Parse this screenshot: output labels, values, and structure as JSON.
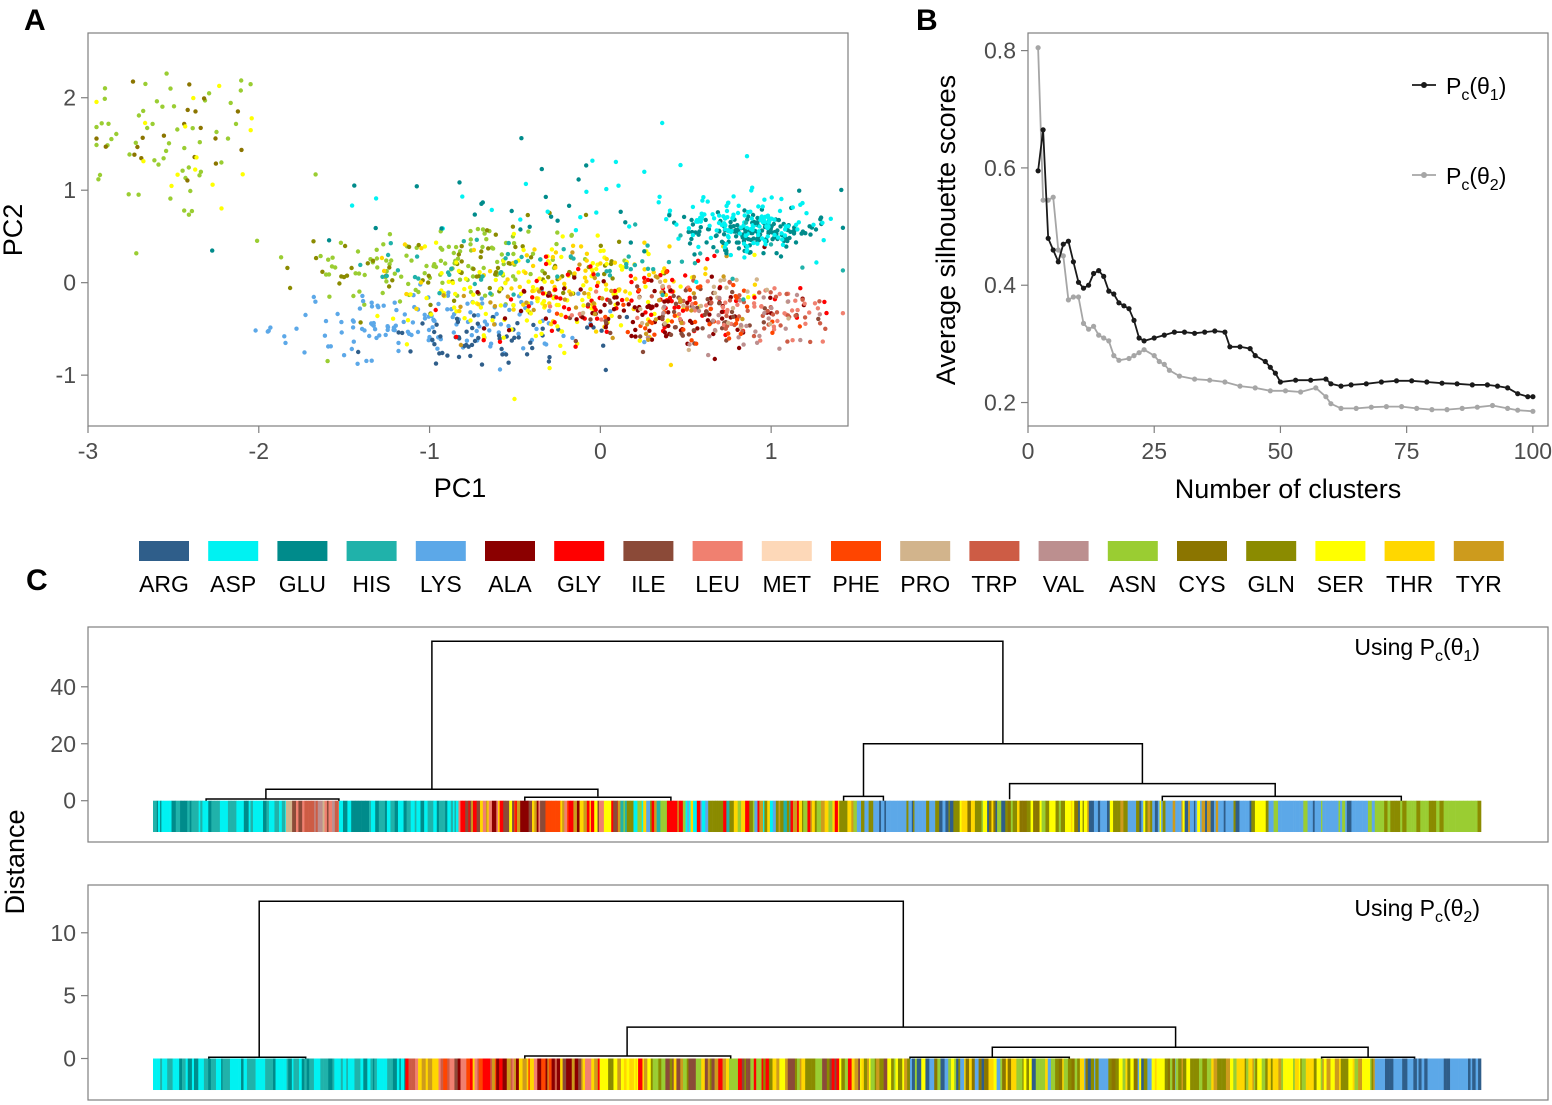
{
  "colors": {
    "ARG": "#2f5e8a",
    "ASP": "#00f2f2",
    "GLU": "#008b8b",
    "HIS": "#20b2aa",
    "LYS": "#5ca8e8",
    "ALA": "#8b0000",
    "GLY": "#ff0000",
    "ILE": "#8b4a38",
    "LEU": "#f08070",
    "MET": "#fdd8b8",
    "PHE": "#ff4500",
    "PRO": "#d2b48c",
    "TRP": "#cd5c45",
    "VAL": "#bc8f8f",
    "ASN": "#9acd32",
    "CYS": "#8b7500",
    "GLN": "#8b8b00",
    "SER": "#ffff00",
    "THR": "#ffd700",
    "TYR": "#cd9b1d"
  },
  "legend_c": [
    "ARG",
    "ASP",
    "GLU",
    "HIS",
    "LYS",
    "ALA",
    "GLY",
    "ILE",
    "LEU",
    "MET",
    "PHE",
    "PRO",
    "TRP",
    "VAL",
    "ASN",
    "CYS",
    "GLN",
    "SER",
    "THR",
    "TYR"
  ],
  "panel_letters": {
    "a": "A",
    "b": "B",
    "c": "C"
  },
  "chart_data": [
    {
      "id": "A",
      "type": "scatter",
      "title": "",
      "xlabel": "PC1",
      "ylabel": "PC2",
      "xlim": [
        -3.0,
        1.45
      ],
      "ylim": [
        -1.55,
        2.7
      ],
      "xticks": [
        "-3",
        "-2",
        "-1",
        "0",
        "1"
      ],
      "yticks": [
        "-1",
        "0",
        "1",
        "2"
      ],
      "clusters": [
        {
          "cls": "ASN",
          "n": 55,
          "cx": -2.5,
          "cy": 1.5,
          "sx": 0.3,
          "sy": 0.45
        },
        {
          "cls": "CYS",
          "n": 20,
          "cx": -2.5,
          "cy": 1.7,
          "sx": 0.3,
          "sy": 0.35
        },
        {
          "cls": "SER",
          "n": 15,
          "cx": -2.4,
          "cy": 1.5,
          "sx": 0.25,
          "sy": 0.4
        },
        {
          "cls": "ASN",
          "n": 120,
          "cx": -0.9,
          "cy": 0.2,
          "sx": 0.45,
          "sy": 0.25
        },
        {
          "cls": "GLN",
          "n": 80,
          "cx": -0.7,
          "cy": 0.15,
          "sx": 0.45,
          "sy": 0.25
        },
        {
          "cls": "LYS",
          "n": 150,
          "cx": -1.0,
          "cy": -0.45,
          "sx": 0.45,
          "sy": 0.17
        },
        {
          "cls": "ARG",
          "n": 60,
          "cx": -0.6,
          "cy": -0.65,
          "sx": 0.35,
          "sy": 0.14
        },
        {
          "cls": "SER",
          "n": 140,
          "cx": -0.3,
          "cy": -0.1,
          "sx": 0.4,
          "sy": 0.3
        },
        {
          "cls": "THR",
          "n": 80,
          "cx": -0.2,
          "cy": -0.05,
          "sx": 0.45,
          "sy": 0.28
        },
        {
          "cls": "GLY",
          "n": 90,
          "cx": 0.2,
          "cy": -0.2,
          "sx": 0.5,
          "sy": 0.2
        },
        {
          "cls": "ALA",
          "n": 90,
          "cx": 0.3,
          "cy": -0.3,
          "sx": 0.4,
          "sy": 0.2
        },
        {
          "cls": "ILE",
          "n": 60,
          "cx": 0.5,
          "cy": -0.35,
          "sx": 0.35,
          "sy": 0.18
        },
        {
          "cls": "LEU",
          "n": 50,
          "cx": 0.8,
          "cy": -0.3,
          "sx": 0.35,
          "sy": 0.18
        },
        {
          "cls": "TRP",
          "n": 40,
          "cx": 0.9,
          "cy": -0.35,
          "sx": 0.3,
          "sy": 0.18
        },
        {
          "cls": "PHE",
          "n": 40,
          "cx": 0.6,
          "cy": -0.3,
          "sx": 0.35,
          "sy": 0.2
        },
        {
          "cls": "PRO",
          "n": 30,
          "cx": 0.7,
          "cy": -0.3,
          "sx": 0.3,
          "sy": 0.2
        },
        {
          "cls": "VAL",
          "n": 30,
          "cx": 0.8,
          "cy": -0.4,
          "sx": 0.3,
          "sy": 0.2
        },
        {
          "cls": "TYR",
          "n": 40,
          "cx": 0.1,
          "cy": -0.15,
          "sx": 0.45,
          "sy": 0.22
        },
        {
          "cls": "GLU",
          "n": 150,
          "cx": 0.9,
          "cy": 0.55,
          "sx": 0.2,
          "sy": 0.1
        },
        {
          "cls": "ASP",
          "n": 130,
          "cx": 0.85,
          "cy": 0.65,
          "sx": 0.2,
          "sy": 0.15
        },
        {
          "cls": "ASP",
          "n": 30,
          "cx": 0.0,
          "cy": 0.8,
          "sx": 0.6,
          "sy": 0.35
        },
        {
          "cls": "GLU",
          "n": 30,
          "cx": -0.2,
          "cy": 0.9,
          "sx": 0.7,
          "sy": 0.3
        },
        {
          "cls": "HIS",
          "n": 60,
          "cx": -0.2,
          "cy": 0.15,
          "sx": 0.7,
          "sy": 0.2
        }
      ]
    },
    {
      "id": "B",
      "type": "line",
      "title": "",
      "xlabel": "Number of clusters",
      "ylabel": "Average silhouette scores",
      "xlim": [
        0,
        103
      ],
      "ylim": [
        0.16,
        0.83
      ],
      "xticks": [
        "0",
        "25",
        "50",
        "75",
        "100"
      ],
      "yticks": [
        "0.2",
        "0.4",
        "0.6",
        "0.8"
      ],
      "series": [
        {
          "name": "theta1",
          "legend_main": "P",
          "legend_sub": "c",
          "legend_arg": "(θ",
          "legend_argsub": "1",
          "legend_close": ")",
          "color": "#1a1a1a",
          "points": [
            [
              2,
              0.595
            ],
            [
              3,
              0.665
            ],
            [
              4,
              0.48
            ],
            [
              5,
              0.46
            ],
            [
              6,
              0.44
            ],
            [
              7,
              0.47
            ],
            [
              8,
              0.475
            ],
            [
              9,
              0.44
            ],
            [
              10,
              0.405
            ],
            [
              11,
              0.395
            ],
            [
              12,
              0.4
            ],
            [
              13,
              0.42
            ],
            [
              14,
              0.425
            ],
            [
              15,
              0.415
            ],
            [
              16,
              0.39
            ],
            [
              17,
              0.385
            ],
            [
              18,
              0.37
            ],
            [
              19,
              0.365
            ],
            [
              20,
              0.36
            ],
            [
              21,
              0.34
            ],
            [
              22,
              0.31
            ],
            [
              23,
              0.305
            ],
            [
              25,
              0.31
            ],
            [
              27,
              0.315
            ],
            [
              29,
              0.32
            ],
            [
              31,
              0.32
            ],
            [
              33,
              0.318
            ],
            [
              35,
              0.32
            ],
            [
              37,
              0.322
            ],
            [
              39,
              0.32
            ],
            [
              40,
              0.295
            ],
            [
              42,
              0.295
            ],
            [
              44,
              0.292
            ],
            [
              45,
              0.28
            ],
            [
              47,
              0.27
            ],
            [
              48,
              0.26
            ],
            [
              49,
              0.25
            ],
            [
              50,
              0.235
            ],
            [
              53,
              0.238
            ],
            [
              56,
              0.238
            ],
            [
              59,
              0.24
            ],
            [
              60,
              0.232
            ],
            [
              62,
              0.228
            ],
            [
              64,
              0.23
            ],
            [
              67,
              0.232
            ],
            [
              70,
              0.235
            ],
            [
              73,
              0.237
            ],
            [
              76,
              0.237
            ],
            [
              79,
              0.235
            ],
            [
              82,
              0.233
            ],
            [
              85,
              0.232
            ],
            [
              88,
              0.23
            ],
            [
              91,
              0.23
            ],
            [
              93,
              0.228
            ],
            [
              95,
              0.225
            ],
            [
              97,
              0.215
            ],
            [
              99,
              0.21
            ],
            [
              100,
              0.21
            ]
          ]
        },
        {
          "name": "theta2",
          "legend_main": "P",
          "legend_sub": "c",
          "legend_arg": "(θ",
          "legend_argsub": "2",
          "legend_close": ")",
          "color": "#a6a6a6",
          "points": [
            [
              2,
              0.805
            ],
            [
              3,
              0.545
            ],
            [
              4,
              0.545
            ],
            [
              5,
              0.55
            ],
            [
              6,
              0.46
            ],
            [
              7,
              0.45
            ],
            [
              8,
              0.375
            ],
            [
              9,
              0.38
            ],
            [
              10,
              0.38
            ],
            [
              11,
              0.335
            ],
            [
              12,
              0.325
            ],
            [
              13,
              0.33
            ],
            [
              14,
              0.315
            ],
            [
              15,
              0.31
            ],
            [
              16,
              0.305
            ],
            [
              17,
              0.28
            ],
            [
              18,
              0.272
            ],
            [
              20,
              0.275
            ],
            [
              21,
              0.28
            ],
            [
              22,
              0.285
            ],
            [
              23,
              0.29
            ],
            [
              25,
              0.28
            ],
            [
              26,
              0.27
            ],
            [
              27,
              0.265
            ],
            [
              28,
              0.255
            ],
            [
              30,
              0.245
            ],
            [
              33,
              0.24
            ],
            [
              36,
              0.238
            ],
            [
              39,
              0.235
            ],
            [
              42,
              0.228
            ],
            [
              45,
              0.225
            ],
            [
              48,
              0.22
            ],
            [
              51,
              0.22
            ],
            [
              54,
              0.218
            ],
            [
              57,
              0.225
            ],
            [
              59,
              0.21
            ],
            [
              60,
              0.198
            ],
            [
              62,
              0.19
            ],
            [
              65,
              0.19
            ],
            [
              68,
              0.192
            ],
            [
              71,
              0.193
            ],
            [
              74,
              0.193
            ],
            [
              77,
              0.19
            ],
            [
              80,
              0.188
            ],
            [
              83,
              0.188
            ],
            [
              86,
              0.19
            ],
            [
              89,
              0.192
            ],
            [
              92,
              0.195
            ],
            [
              95,
              0.19
            ],
            [
              97,
              0.187
            ],
            [
              100,
              0.185
            ]
          ]
        }
      ]
    },
    {
      "id": "C1",
      "type": "dendrogram",
      "annotation_prefix": "Using P",
      "annotation_sub": "c",
      "annotation_arg": "(θ",
      "annotation_argsub": "1",
      "annotation_close": ")",
      "ylabel": "Distance",
      "ylim": [
        -14.5,
        61
      ],
      "yticks": [
        "0",
        "20",
        "40"
      ],
      "links": [
        {
          "x1": 0.21,
          "x2": 0.64,
          "y": 56,
          "y1": 4,
          "y2": 20
        },
        {
          "x1": 0.085,
          "x2": 0.335,
          "y": 4,
          "y1": 0.5,
          "y2": 1.5
        },
        {
          "x1": 0.535,
          "x2": 0.745,
          "y": 20,
          "y1": 1.5,
          "y2": 6
        },
        {
          "x1": 0.645,
          "x2": 0.845,
          "y": 6,
          "y1": 0.5,
          "y2": 1.5
        },
        {
          "x1": 0.04,
          "x2": 0.14,
          "y": 0.6,
          "y1": 0,
          "y2": 0
        },
        {
          "x1": 0.28,
          "x2": 0.39,
          "y": 1.2,
          "y1": 0,
          "y2": 0
        },
        {
          "x1": 0.52,
          "x2": 0.55,
          "y": 1.5,
          "y1": 0,
          "y2": 0
        },
        {
          "x1": 0.76,
          "x2": 0.94,
          "y": 1.5,
          "y1": 0,
          "y2": 0
        }
      ],
      "strip": [
        {
          "from": 0.0,
          "to": 0.04,
          "mix": [
            "HIS",
            "ASP",
            "GLU",
            "HIS"
          ]
        },
        {
          "from": 0.04,
          "to": 0.1,
          "mix": [
            "ASP",
            "GLU",
            "HIS",
            "ASP"
          ]
        },
        {
          "from": 0.1,
          "to": 0.14,
          "mix": [
            "TRP",
            "VAL",
            "ILE",
            "LEU",
            "PRO"
          ]
        },
        {
          "from": 0.14,
          "to": 0.23,
          "mix": [
            "ASP",
            "HIS",
            "GLU",
            "ASP"
          ]
        },
        {
          "from": 0.23,
          "to": 0.35,
          "mix": [
            "GLY",
            "THR",
            "ILE",
            "ALA",
            "LEU",
            "SER",
            "PHE",
            "TYR"
          ]
        },
        {
          "from": 0.35,
          "to": 0.48,
          "mix": [
            "ASP",
            "HIS",
            "GLN",
            "ASN",
            "THR",
            "GLY",
            "LYS",
            "TYR"
          ]
        },
        {
          "from": 0.48,
          "to": 0.53,
          "mix": [
            "THR",
            "ASN",
            "GLN",
            "GLY",
            "TYR"
          ]
        },
        {
          "from": 0.53,
          "to": 0.6,
          "mix": [
            "LYS",
            "ARG",
            "LYS",
            "GLN",
            "LYS"
          ]
        },
        {
          "from": 0.6,
          "to": 0.7,
          "mix": [
            "SER",
            "THR",
            "GLN",
            "CYS",
            "ASN",
            "ARG"
          ]
        },
        {
          "from": 0.7,
          "to": 0.84,
          "mix": [
            "LYS",
            "SER",
            "ARG",
            "GLN",
            "TYR",
            "LYS"
          ]
        },
        {
          "from": 0.84,
          "to": 0.92,
          "mix": [
            "LYS",
            "ARG",
            "LYS",
            "ASN"
          ]
        },
        {
          "from": 0.92,
          "to": 1.0,
          "mix": [
            "ASN",
            "ASN",
            "GLN",
            "ASN"
          ]
        }
      ]
    },
    {
      "id": "C2",
      "type": "dendrogram",
      "annotation_prefix": "Using P",
      "annotation_sub": "c",
      "annotation_arg": "(θ",
      "annotation_argsub": "2",
      "annotation_close": ")",
      "ylabel": "",
      "ylim": [
        -3.3,
        13.8
      ],
      "yticks": [
        "0",
        "5",
        "10"
      ],
      "links": [
        {
          "x1": 0.08,
          "x2": 0.565,
          "y": 12.5,
          "y1": 0.1,
          "y2": 2.5
        },
        {
          "x1": 0.357,
          "x2": 0.77,
          "y": 2.5,
          "y1": 0.2,
          "y2": 0.9
        },
        {
          "x1": 0.042,
          "x2": 0.115,
          "y": 0.1,
          "y1": 0,
          "y2": 0
        },
        {
          "x1": 0.28,
          "x2": 0.435,
          "y": 0.2,
          "y1": 0,
          "y2": 0
        },
        {
          "x1": 0.632,
          "x2": 0.915,
          "y": 0.9,
          "y1": 0.1,
          "y2": 0.1
        },
        {
          "x1": 0.57,
          "x2": 0.69,
          "y": 0.1,
          "y1": 0,
          "y2": 0
        },
        {
          "x1": 0.88,
          "x2": 0.95,
          "y": 0.1,
          "y1": 0,
          "y2": 0
        }
      ],
      "strip": [
        {
          "from": 0.0,
          "to": 0.19,
          "mix": [
            "HIS",
            "ASP",
            "GLU",
            "HIS",
            "ASP"
          ]
        },
        {
          "from": 0.19,
          "to": 0.33,
          "mix": [
            "GLY",
            "ALA",
            "ILE",
            "THR",
            "LEU",
            "TRP",
            "TYR",
            "PHE"
          ]
        },
        {
          "from": 0.33,
          "to": 0.57,
          "mix": [
            "THR",
            "SER",
            "ASN",
            "GLN",
            "TYR",
            "GLY",
            "ILE"
          ]
        },
        {
          "from": 0.57,
          "to": 0.77,
          "mix": [
            "THR",
            "SER",
            "GLN",
            "CYS",
            "LYS",
            "ARG",
            "ASN"
          ]
        },
        {
          "from": 0.77,
          "to": 0.92,
          "mix": [
            "ASN",
            "THR",
            "SER",
            "GLN",
            "TYR"
          ]
        },
        {
          "from": 0.92,
          "to": 1.0,
          "mix": [
            "LYS",
            "LYS",
            "ARG",
            "LYS"
          ]
        }
      ]
    }
  ]
}
